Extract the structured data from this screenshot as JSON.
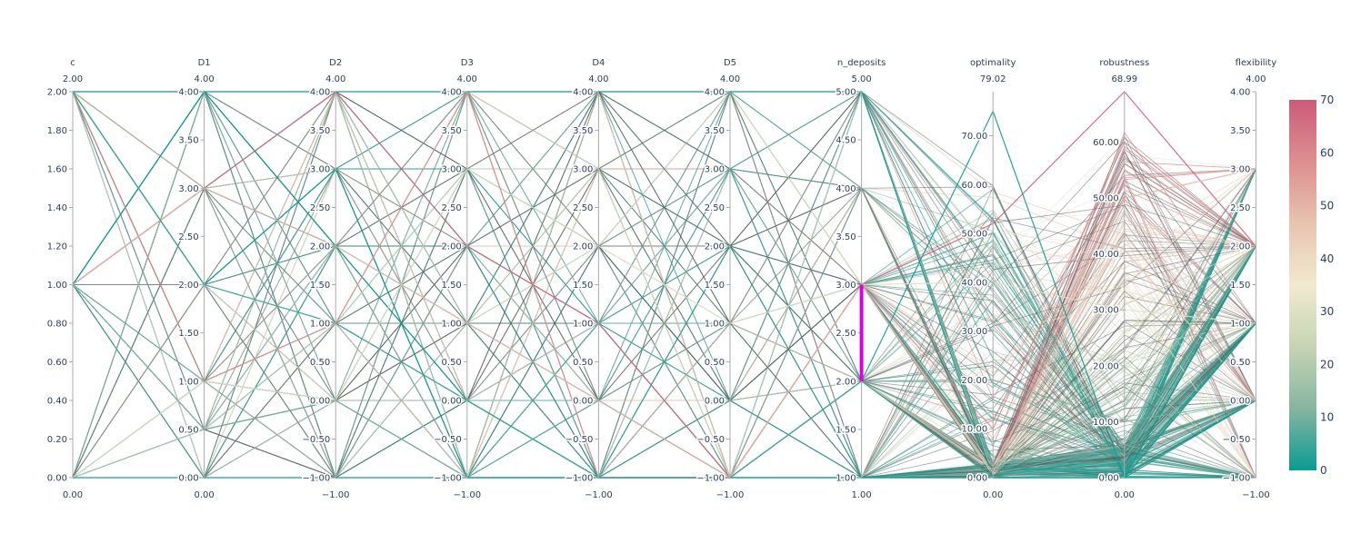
{
  "chart_data": {
    "type": "parallel_coordinates",
    "axes": [
      {
        "name": "c",
        "range": [
          0,
          2
        ],
        "range_labels": [
          "2.00",
          "0.00"
        ],
        "ticks": [
          "0.00",
          "0.20",
          "0.40",
          "0.60",
          "0.80",
          "1.00",
          "1.20",
          "1.40",
          "1.60",
          "1.80",
          "2.00"
        ],
        "tick_values": [
          0,
          0.2,
          0.4,
          0.6,
          0.8,
          1.0,
          1.2,
          1.4,
          1.6,
          1.8,
          2.0
        ]
      },
      {
        "name": "D1",
        "range": [
          0,
          4
        ],
        "range_labels": [
          "4.00",
          "0.00"
        ],
        "ticks": [
          "0.00",
          "0.50",
          "1.00",
          "1.50",
          "2.00",
          "2.50",
          "3.00",
          "3.50",
          "4.00"
        ],
        "tick_values": [
          0,
          0.5,
          1,
          1.5,
          2,
          2.5,
          3,
          3.5,
          4
        ]
      },
      {
        "name": "D2",
        "range": [
          -1,
          4
        ],
        "range_labels": [
          "4.00",
          "−1.00"
        ],
        "ticks": [
          "−1.00",
          "−0.50",
          "0.00",
          "0.50",
          "1.00",
          "1.50",
          "2.00",
          "2.50",
          "3.00",
          "3.50",
          "4.00"
        ],
        "tick_values": [
          -1,
          -0.5,
          0,
          0.5,
          1,
          1.5,
          2,
          2.5,
          3,
          3.5,
          4
        ]
      },
      {
        "name": "D3",
        "range": [
          -1,
          4
        ],
        "range_labels": [
          "4.00",
          "−1.00"
        ],
        "ticks": [
          "−1.00",
          "−0.50",
          "0.00",
          "0.50",
          "1.00",
          "1.50",
          "2.00",
          "2.50",
          "3.00",
          "3.50",
          "4.00"
        ],
        "tick_values": [
          -1,
          -0.5,
          0,
          0.5,
          1,
          1.5,
          2,
          2.5,
          3,
          3.5,
          4
        ]
      },
      {
        "name": "D4",
        "range": [
          -1,
          4
        ],
        "range_labels": [
          "4.00",
          "−1.00"
        ],
        "ticks": [
          "−1.00",
          "−0.50",
          "0.00",
          "0.50",
          "1.00",
          "1.50",
          "2.00",
          "2.50",
          "3.00",
          "3.50",
          "4.00"
        ],
        "tick_values": [
          -1,
          -0.5,
          0,
          0.5,
          1,
          1.5,
          2,
          2.5,
          3,
          3.5,
          4
        ]
      },
      {
        "name": "D5",
        "range": [
          -1,
          4
        ],
        "range_labels": [
          "4.00",
          "−1.00"
        ],
        "ticks": [
          "−1.00",
          "−0.50",
          "0.00",
          "0.50",
          "1.00",
          "1.50",
          "2.00",
          "2.50",
          "3.00",
          "3.50",
          "4.00"
        ],
        "tick_values": [
          -1,
          -0.5,
          0,
          0.5,
          1,
          1.5,
          2,
          2.5,
          3,
          3.5,
          4
        ]
      },
      {
        "name": "n_deposits",
        "range": [
          1,
          5
        ],
        "range_labels": [
          "5.00",
          "1.00"
        ],
        "ticks": [
          "1.00",
          "1.50",
          "2.00",
          "2.50",
          "3.00",
          "3.50",
          "4.00",
          "4.50",
          "5.00"
        ],
        "tick_values": [
          1,
          1.5,
          2,
          2.5,
          3,
          3.5,
          4,
          4.5,
          5
        ],
        "constraint_range": [
          2,
          3
        ]
      },
      {
        "name": "optimality",
        "range": [
          0,
          79.02
        ],
        "range_labels": [
          "79.02",
          "0.00"
        ],
        "ticks": [
          "0.00",
          "10.00",
          "20.00",
          "30.00",
          "40.00",
          "50.00",
          "60.00",
          "70.00"
        ],
        "tick_values": [
          0,
          10,
          20,
          30,
          40,
          50,
          60,
          70
        ]
      },
      {
        "name": "robustness",
        "range": [
          0,
          68.99
        ],
        "range_labels": [
          "68.99",
          "0.00"
        ],
        "ticks": [
          "0.00",
          "10.00",
          "20.00",
          "30.00",
          "40.00",
          "50.00",
          "60.00"
        ],
        "tick_values": [
          0,
          10,
          20,
          30,
          40,
          50,
          60
        ]
      },
      {
        "name": "flexibility",
        "range": [
          -1,
          4
        ],
        "range_labels": [
          "4.00",
          "−1.00"
        ],
        "ticks": [
          "−1.00",
          "−0.50",
          "0.00",
          "0.50",
          "1.00",
          "1.50",
          "2.00",
          "2.50",
          "3.00",
          "3.50",
          "4.00"
        ],
        "tick_values": [
          -1,
          -0.5,
          0,
          0.5,
          1,
          1.5,
          2,
          2.5,
          3,
          3.5,
          4
        ]
      }
    ],
    "colorbar": {
      "range": [
        0,
        70
      ],
      "ticks": [
        "0",
        "10",
        "20",
        "30",
        "40",
        "50",
        "60",
        "70"
      ],
      "tick_values": [
        0,
        10,
        20,
        30,
        40,
        50,
        60,
        70
      ],
      "colors": [
        "#009B9E",
        "#42B7B9",
        "#A7D3D4",
        "#F1F1E4",
        "#E4C1D9",
        "#D691C1",
        "#C75DAB"
      ],
      "colorscale_display": [
        "#0a9b92",
        "#86b5a1",
        "#c6d4b4",
        "#f1ead0",
        "#e8c3b0",
        "#dc8f8f",
        "#cc5b7a"
      ]
    },
    "constraint_color": "#dd00dd",
    "line_samples": [
      [
        2,
        4,
        4,
        4,
        4,
        4,
        5,
        0,
        0,
        2
      ],
      [
        2,
        2,
        3,
        -1,
        -1,
        -1,
        1,
        0,
        0,
        0
      ],
      [
        1,
        3,
        4,
        2,
        1,
        -1,
        3,
        52,
        68.99,
        2
      ],
      [
        1,
        4,
        2,
        0,
        -1,
        -1,
        2,
        75,
        0,
        1
      ],
      [
        0,
        1,
        0,
        3,
        2,
        1,
        3,
        40,
        30,
        1
      ],
      [
        1,
        0.5,
        0,
        -1,
        -1,
        -1,
        2,
        20,
        10,
        0
      ],
      [
        2,
        1,
        1,
        4,
        -1,
        -1,
        3,
        10,
        60,
        2
      ],
      [
        0,
        0,
        -1,
        -1,
        -1,
        -1,
        1,
        0,
        0,
        -1
      ],
      [
        1,
        3,
        2,
        1,
        0,
        -1,
        3,
        1,
        50,
        3
      ],
      [
        2,
        2,
        1,
        0,
        -1,
        -1,
        2,
        0,
        5,
        2
      ]
    ]
  }
}
